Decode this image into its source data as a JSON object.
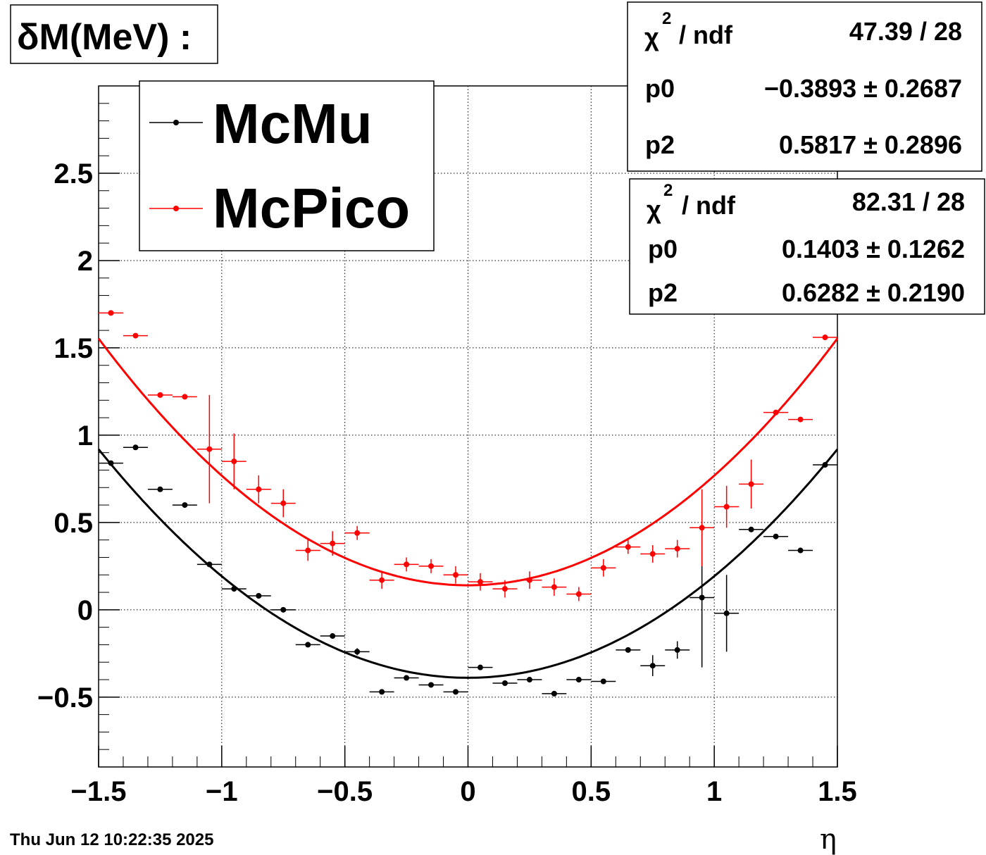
{
  "chart_data": {
    "type": "scatter",
    "title": "δM(MeV) :",
    "xlabel": "η",
    "ylabel": "",
    "xlim": [
      -1.5,
      1.5
    ],
    "ylim": [
      -0.9,
      3.0
    ],
    "grid": true,
    "legend_position": "top-left",
    "x_ticks": [
      -1.5,
      -1,
      -0.5,
      0,
      0.5,
      1,
      1.5
    ],
    "x_tick_labels": [
      "−1.5",
      "−1",
      "−0.5",
      "0",
      "0.5",
      "1",
      "1.5"
    ],
    "y_ticks": [
      -0.5,
      0,
      0.5,
      1,
      1.5,
      2,
      2.5
    ],
    "y_tick_labels": [
      "−0.5",
      "0",
      "0.5",
      "1",
      "1.5",
      "2",
      "2.5"
    ],
    "x_bin_halfwidth": 0.05,
    "series": [
      {
        "name": "McMu",
        "color": "#000000",
        "x": [
          -1.45,
          -1.35,
          -1.25,
          -1.15,
          -1.05,
          -0.95,
          -0.85,
          -0.75,
          -0.65,
          -0.55,
          -0.45,
          -0.35,
          -0.25,
          -0.15,
          -0.05,
          0.05,
          0.15,
          0.25,
          0.35,
          0.45,
          0.55,
          0.65,
          0.75,
          0.85,
          0.95,
          1.05,
          1.15,
          1.25,
          1.35,
          1.45
        ],
        "y": [
          0.84,
          0.93,
          0.69,
          0.6,
          0.26,
          0.12,
          0.08,
          0.0,
          -0.2,
          -0.15,
          -0.24,
          -0.47,
          -0.39,
          -0.43,
          -0.47,
          -0.33,
          -0.42,
          -0.4,
          -0.48,
          -0.4,
          -0.41,
          -0.23,
          -0.32,
          -0.23,
          0.07,
          -0.02,
          0.46,
          0.42,
          0.34,
          0.83
        ],
        "yerr": [
          0.01,
          0.01,
          0.01,
          0.01,
          0.01,
          0.01,
          0.01,
          0.01,
          0.01,
          0.01,
          0.02,
          0.01,
          0.01,
          0.01,
          0.01,
          0.01,
          0.01,
          0.01,
          0.01,
          0.01,
          0.01,
          0.01,
          0.06,
          0.05,
          0.4,
          0.22,
          0.01,
          0.01,
          0.01,
          0.01
        ],
        "fit": {
          "p0": -0.3893,
          "p2": 0.5817
        },
        "stats": {
          "chi2_label": "χ",
          "chi2_sup": "2",
          "ndf_label": "/ ndf",
          "chi2_ndf": "47.39 / 28",
          "p0_label": "p0",
          "p0_value": "−0.3893 ± 0.2687",
          "p2_label": "p2",
          "p2_value": "0.5817 ± 0.2896"
        }
      },
      {
        "name": "McPico",
        "color": "#ff0000",
        "x": [
          -1.45,
          -1.35,
          -1.25,
          -1.15,
          -1.05,
          -0.95,
          -0.85,
          -0.75,
          -0.65,
          -0.55,
          -0.45,
          -0.35,
          -0.25,
          -0.15,
          -0.05,
          0.05,
          0.15,
          0.25,
          0.35,
          0.45,
          0.55,
          0.65,
          0.75,
          0.85,
          0.95,
          1.05,
          1.15,
          1.25,
          1.35,
          1.45
        ],
        "y": [
          1.7,
          1.57,
          1.23,
          1.22,
          0.92,
          0.85,
          0.69,
          0.61,
          0.34,
          0.38,
          0.44,
          0.17,
          0.26,
          0.25,
          0.2,
          0.16,
          0.12,
          0.17,
          0.13,
          0.09,
          0.24,
          0.36,
          0.32,
          0.35,
          0.47,
          0.59,
          0.72,
          1.13,
          1.09,
          1.56
        ],
        "yerr": [
          0.01,
          0.01,
          0.01,
          0.01,
          0.31,
          0.16,
          0.08,
          0.08,
          0.06,
          0.07,
          0.04,
          0.05,
          0.04,
          0.04,
          0.05,
          0.05,
          0.05,
          0.05,
          0.05,
          0.04,
          0.05,
          0.04,
          0.05,
          0.05,
          0.22,
          0.12,
          0.14,
          0.01,
          0.01,
          0.01
        ],
        "fit": {
          "p0": 0.1403,
          "p2": 0.6282
        },
        "stats": {
          "chi2_label": "χ",
          "chi2_sup": "2",
          "ndf_label": "/ ndf",
          "chi2_ndf": "82.31 / 28",
          "p0_label": "p0",
          "p0_value": "0.1403 ± 0.1262",
          "p2_label": "p2",
          "p2_value": "0.6282 ± 0.2190"
        }
      }
    ]
  },
  "footer": {
    "timestamp": "Thu Jun 12 10:22:35 2025"
  }
}
